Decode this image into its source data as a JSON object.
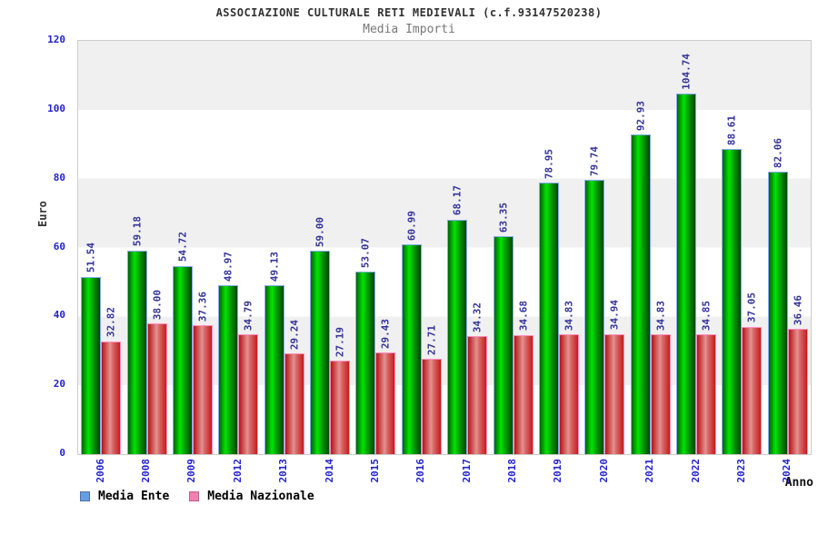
{
  "header": {
    "title": "ASSOCIAZIONE CULTURALE RETI MEDIEVALI (c.f.93147520238)",
    "subtitle": "Media Importi"
  },
  "chart_data": {
    "type": "bar",
    "title": "ASSOCIAZIONE CULTURALE RETI MEDIEVALI (c.f.93147520238)",
    "subtitle": "Media Importi",
    "xlabel": "Anno",
    "ylabel": "Euro",
    "ylim": [
      0,
      120
    ],
    "yticks": [
      0,
      20,
      40,
      60,
      80,
      100,
      120
    ],
    "grid": "alternating-horizontal-bands",
    "band_colors": [
      "#f0f0f0",
      "#ffffff"
    ],
    "legend_position": "bottom-left",
    "categories": [
      "2006",
      "2008",
      "2009",
      "2012",
      "2013",
      "2014",
      "2015",
      "2016",
      "2017",
      "2018",
      "2019",
      "2020",
      "2021",
      "2022",
      "2023",
      "2024"
    ],
    "series": [
      {
        "name": "Media Ente",
        "bar_fill": "green-gradient",
        "bar_border_color": "#86abee",
        "legend_swatch_color": "#649fe6",
        "values": [
          51.54,
          59.18,
          54.72,
          48.97,
          49.13,
          59.0,
          53.07,
          60.99,
          68.17,
          63.35,
          78.95,
          79.74,
          92.93,
          104.74,
          88.61,
          82.06
        ]
      },
      {
        "name": "Media Nazionale",
        "bar_fill": "red-gradient",
        "bar_border_color": "#ff8fc0",
        "legend_swatch_color": "#f07fb2",
        "values": [
          32.82,
          38.0,
          37.36,
          34.79,
          29.24,
          27.19,
          29.43,
          27.71,
          34.32,
          34.68,
          34.83,
          34.94,
          34.83,
          34.85,
          37.05,
          36.46
        ]
      }
    ],
    "value_label_color": "#333399",
    "tick_label_color": "#2222cc"
  }
}
